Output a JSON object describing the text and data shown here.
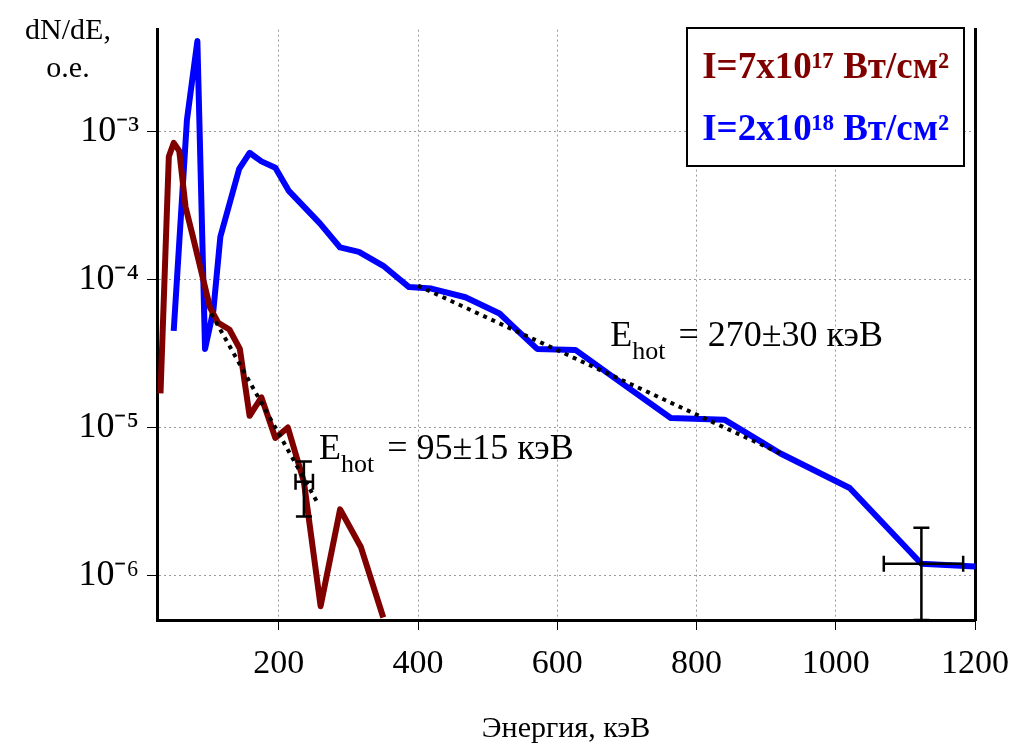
{
  "chart_data": {
    "type": "line",
    "xlabel": "Энергия, кэВ",
    "ylabel": "dN/dE, o.e.",
    "log": "y",
    "grid": true,
    "legend": "top right",
    "line_style": "solid",
    "marker": "none",
    "xlim": [
      25,
      1200
    ],
    "xticks": [
      200,
      400,
      600,
      800,
      1000,
      1200
    ],
    "ylim": [
      5e-07,
      0.0049
    ],
    "yticks": [
      {
        "value": 1e-06,
        "label": "10⁻⁶"
      },
      {
        "value": 1e-05,
        "label": "10⁻⁵"
      },
      {
        "value": 0.0001,
        "label": "10⁻⁴"
      },
      {
        "value": 0.001,
        "label": "10⁻³"
      }
    ],
    "series": [
      {
        "name": "I=7x10¹⁷ Вт/см²",
        "color": "#800000",
        "x": [
          30,
          42,
          49,
          57,
          66,
          76,
          101,
          113,
          129,
          144,
          158,
          175,
          195,
          213,
          236,
          260,
          288,
          318,
          350
        ],
        "values": [
          1.7e-05,
          0.00068,
          0.00084,
          0.00074,
          0.00031,
          0.0002,
          6.5e-05,
          5.1e-05,
          4.6e-05,
          3.4e-05,
          1.2e-05,
          1.6e-05,
          8.5e-06,
          1e-05,
          4.3e-06,
          6.2e-07,
          2.8e-06,
          1.55e-06,
          5.2e-07
        ],
        "errors": [
          null,
          null,
          null,
          null,
          null,
          null,
          null,
          null,
          null,
          null,
          null,
          null,
          null,
          null,
          [
            2.5e-06,
            5.9e-06
          ],
          null,
          null,
          null,
          null
        ],
        "xerrors": [
          null,
          null,
          null,
          null,
          null,
          null,
          null,
          null,
          null,
          null,
          null,
          null,
          null,
          null,
          [
            224,
            249
          ],
          null,
          null,
          null,
          null
        ]
      },
      {
        "name": "I=2x10¹⁸ Вт/см²",
        "color": "#0000ff",
        "x": [
          49,
          68,
          83,
          94,
          106,
          116,
          143,
          158,
          175,
          195,
          214,
          259,
          288,
          315,
          350,
          387,
          419,
          468,
          517,
          571,
          626,
          686,
          763,
          840,
          920,
          1020,
          1123,
          1200
        ],
        "values": [
          4.5e-05,
          0.0012,
          0.0041,
          3.4e-05,
          6.2e-05,
          0.000195,
          0.00056,
          0.00072,
          0.00063,
          0.00057,
          0.0004,
          0.00024,
          0.000165,
          0.000154,
          0.000124,
          8.9e-05,
          8.7e-05,
          7.6e-05,
          5.9e-05,
          3.4e-05,
          3.35e-05,
          2.1e-05,
          1.16e-05,
          1.13e-05,
          6.7e-06,
          3.9e-06,
          1.2e-06,
          1.15e-06
        ],
        "errors": [
          null,
          null,
          null,
          null,
          null,
          null,
          null,
          null,
          null,
          null,
          null,
          null,
          null,
          null,
          null,
          null,
          null,
          null,
          null,
          null,
          null,
          null,
          null,
          null,
          null,
          null,
          [
            5e-07,
            2.1e-06
          ],
          null
        ],
        "xerrors": [
          null,
          null,
          null,
          null,
          null,
          null,
          null,
          null,
          null,
          null,
          null,
          null,
          null,
          null,
          null,
          null,
          null,
          null,
          null,
          null,
          null,
          null,
          null,
          null,
          null,
          null,
          [
            1069,
            1183
          ],
          null
        ]
      },
      {
        "type": "line",
        "line_style": "dotted",
        "color": "#000000",
        "x": [
          103,
          254
        ],
        "values": [
          5.9e-05,
          3.2e-06
        ]
      },
      {
        "type": "line",
        "line_style": "dotted",
        "color": "#000000",
        "x": [
          400,
          920
        ],
        "values": [
          9.1e-05,
          6.7e-06
        ]
      }
    ],
    "annotations": [
      "E$_{hot}$ = 95±15 кэВ",
      "E$_{hot}$ = 270±30 кэВ"
    ]
  }
}
